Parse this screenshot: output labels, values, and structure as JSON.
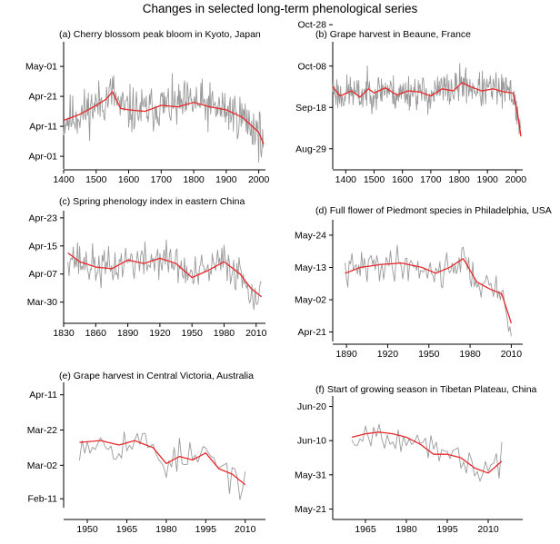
{
  "figure": {
    "title": "Changes in selected long-term phenological series"
  },
  "colors": {
    "annual_series": "#9a9a9a",
    "smoothed_series": "#e8282b",
    "axis": "#000000"
  },
  "chart_data": [
    {
      "type": "line",
      "title": "(a) Cherry blossom peak bloom in Kyoto, Japan",
      "xlim": [
        1400,
        2015
      ],
      "x_ticks": [
        1400,
        1500,
        1600,
        1700,
        1800,
        1900,
        2000
      ],
      "ylim": [
        -3,
        37
      ],
      "y_ticks": [
        {
          "value": 0,
          "label": "Apr-01"
        },
        {
          "value": 10,
          "label": "Apr-11"
        },
        {
          "value": 20,
          "label": "Apr-21"
        },
        {
          "value": 30,
          "label": "May-01"
        }
      ],
      "series": [
        {
          "style": "annual",
          "seed": 11,
          "noise": 5.5,
          "step": 2,
          "x_start": 1400
        },
        {
          "style": "smoothed",
          "x": [
            1400,
            1450,
            1500,
            1530,
            1550,
            1575,
            1600,
            1650,
            1700,
            1750,
            1800,
            1850,
            1900,
            1950,
            2000,
            2015
          ],
          "y": [
            12.0,
            14.0,
            17.0,
            19.0,
            21.5,
            16.0,
            15.5,
            15.0,
            17.0,
            16.5,
            18.0,
            16.5,
            15.5,
            13.0,
            8.0,
            4.0
          ]
        }
      ]
    },
    {
      "type": "line",
      "title": "(b) Grape harvest in Beaune, France",
      "xlim": [
        1354,
        2018
      ],
      "x_ticks": [
        1400,
        1500,
        1600,
        1700,
        1800,
        1900,
        2000
      ],
      "ylim": [
        -8,
        50
      ],
      "y_ticks": [
        {
          "value": 0,
          "label": "Aug-29"
        },
        {
          "value": 20,
          "label": "Sep-18"
        },
        {
          "value": 40,
          "label": "Oct-08"
        },
        {
          "value": 60,
          "label": "Oct-28"
        }
      ],
      "series": [
        {
          "style": "annual",
          "seed": 23,
          "noise": 6.0,
          "step": 2,
          "x_start": 1354
        },
        {
          "style": "smoothed",
          "x": [
            1354,
            1380,
            1420,
            1450,
            1480,
            1500,
            1540,
            1580,
            1620,
            1660,
            1700,
            1740,
            1780,
            1810,
            1840,
            1880,
            1920,
            1960,
            1990,
            2005,
            2018
          ],
          "y": [
            30.0,
            25.5,
            28.0,
            25.0,
            29.0,
            27.0,
            29.5,
            26.0,
            28.0,
            27.5,
            25.5,
            29.0,
            28.0,
            32.0,
            30.0,
            28.0,
            29.0,
            27.5,
            27.0,
            18.0,
            6.0
          ]
        }
      ]
    },
    {
      "type": "line",
      "title": "(c) Spring phenology index in eastern China",
      "xlim": [
        1830,
        2017
      ],
      "x_ticks": [
        1830,
        1860,
        1890,
        1920,
        1950,
        1980,
        2010
      ],
      "ylim": [
        -5,
        25
      ],
      "y_ticks": [
        {
          "value": 0,
          "label": "Mar-30"
        },
        {
          "value": 8,
          "label": "Apr-07"
        },
        {
          "value": 16,
          "label": "Apr-15"
        },
        {
          "value": 24,
          "label": "Apr-23"
        }
      ],
      "series": [
        {
          "style": "annual",
          "seed": 37,
          "noise": 4.0,
          "step": 1,
          "x_start": 1834
        },
        {
          "style": "smoothed",
          "x": [
            1834,
            1845,
            1860,
            1875,
            1890,
            1905,
            1920,
            1935,
            1950,
            1965,
            1980,
            1995,
            2005,
            2015
          ],
          "y": [
            14.0,
            11.5,
            10.0,
            9.5,
            12.0,
            11.0,
            12.5,
            11.0,
            7.0,
            9.0,
            11.5,
            8.0,
            4.0,
            1.5
          ]
        }
      ]
    },
    {
      "type": "line",
      "title": "(d) Full flower of Piedmont species in Philadelphia, USA",
      "xlim": [
        1880,
        2017
      ],
      "x_ticks": [
        1890,
        1920,
        1950,
        1980,
        2010
      ],
      "ylim": [
        -2,
        37
      ],
      "y_ticks": [
        {
          "value": 0,
          "label": "Apr-21"
        },
        {
          "value": 11,
          "label": "May-02"
        },
        {
          "value": 22,
          "label": "May-13"
        },
        {
          "value": 33,
          "label": "May-24"
        }
      ],
      "series": [
        {
          "style": "annual",
          "seed": 41,
          "noise": 4.0,
          "step": 1,
          "x_start": 1889
        },
        {
          "style": "smoothed",
          "x": [
            1889,
            1900,
            1915,
            1930,
            1945,
            1955,
            1965,
            1975,
            1985,
            1995,
            2003,
            2010
          ],
          "y": [
            20.0,
            22.0,
            23.0,
            23.5,
            22.0,
            20.0,
            22.0,
            25.0,
            17.0,
            14.5,
            13.0,
            3.0
          ]
        }
      ]
    },
    {
      "type": "line",
      "title": "(e) Grape harvest in Central Victoria, Australia",
      "xlim": [
        1941,
        2017
      ],
      "x_ticks": [
        1950,
        1965,
        1980,
        1995,
        2010
      ],
      "ylim": [
        -3,
        64
      ],
      "y_ticks": [
        {
          "value": 0,
          "label": "Feb-11"
        },
        {
          "value": 19,
          "label": "Mar-02"
        },
        {
          "value": 39,
          "label": "Mar-22"
        },
        {
          "value": 59,
          "label": "Apr-11"
        }
      ],
      "series": [
        {
          "style": "annual",
          "seed": 53,
          "noise": 7.0,
          "step": 1,
          "x_start": 1947
        },
        {
          "style": "smoothed",
          "x": [
            1947,
            1955,
            1962,
            1968,
            1975,
            1980,
            1985,
            1990,
            1995,
            2000,
            2005,
            2010
          ],
          "y": [
            32.0,
            33.0,
            30.5,
            33.0,
            29.0,
            20.0,
            24.0,
            22.0,
            26.0,
            17.0,
            14.0,
            8.0
          ]
        }
      ]
    },
    {
      "type": "line",
      "title": "(f) Start of growing season in Tibetan Plateau, China",
      "xlim": [
        1953,
        2022
      ],
      "x_ticks": [
        1965,
        1980,
        1995,
        2010
      ],
      "ylim": [
        -2,
        32
      ],
      "y_ticks": [
        {
          "value": 0,
          "label": "May-21"
        },
        {
          "value": 10,
          "label": "May-31"
        },
        {
          "value": 20,
          "label": "Jun-10"
        },
        {
          "value": 30,
          "label": "Jun-20"
        }
      ],
      "series": [
        {
          "style": "annual",
          "seed": 67,
          "noise": 3.0,
          "step": 1,
          "x_start": 1960
        },
        {
          "style": "smoothed",
          "x": [
            1960,
            1965,
            1970,
            1975,
            1980,
            1985,
            1990,
            1995,
            2000,
            2005,
            2010,
            2015
          ],
          "y": [
            21.0,
            22.0,
            22.5,
            22.0,
            21.0,
            19.0,
            16.0,
            16.0,
            15.0,
            12.0,
            10.5,
            14.0
          ]
        }
      ]
    }
  ]
}
